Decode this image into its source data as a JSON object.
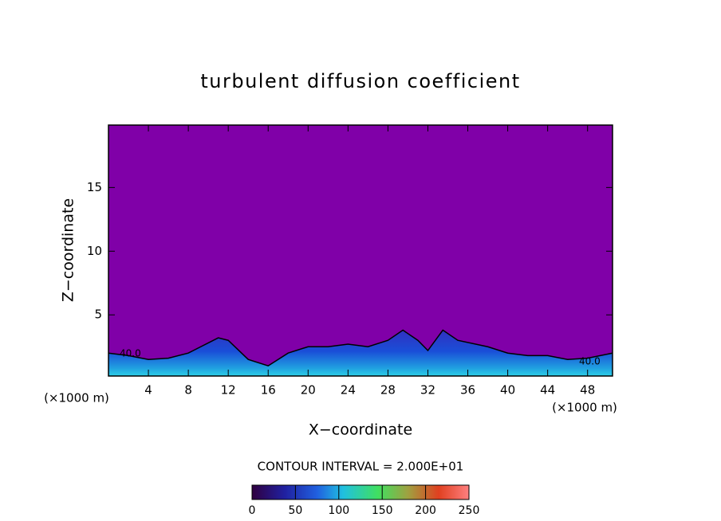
{
  "chart_data": {
    "type": "contour",
    "title": "turbulent diffusion coefficient",
    "x_label": "X−coordinate",
    "y_label": "Z−coordinate",
    "x_unit": "(×1000 m)",
    "contour_interval": "CONTOUR INTERVAL = 2.000E+01",
    "contour_labels": [
      "40.0",
      "40.0"
    ],
    "background_color": "#8000a8",
    "xlim": [
      0,
      50.5
    ],
    "ylim": [
      0.2,
      19.9
    ],
    "xticks": [
      4,
      8,
      12,
      16,
      20,
      24,
      28,
      32,
      36,
      40,
      44,
      48
    ],
    "yticks": [
      5,
      10,
      15
    ],
    "x": [
      0,
      2,
      4,
      6,
      8,
      10,
      11,
      12,
      14,
      16,
      18,
      20,
      22,
      24,
      26,
      28,
      29.5,
      31,
      32,
      33.5,
      35,
      38,
      40,
      42,
      44,
      46,
      48,
      50.5
    ],
    "values": [
      2.0,
      1.8,
      1.5,
      1.6,
      2.0,
      2.8,
      3.2,
      3.0,
      1.5,
      1.0,
      2.0,
      2.5,
      2.5,
      2.7,
      2.5,
      3.0,
      3.8,
      3.0,
      2.2,
      3.8,
      3.0,
      2.5,
      2.0,
      1.8,
      1.8,
      1.5,
      1.6,
      2.0
    ],
    "colorbar": {
      "lim": [
        0,
        250
      ],
      "ticks": [
        0,
        50,
        100,
        150,
        200,
        250
      ]
    }
  }
}
